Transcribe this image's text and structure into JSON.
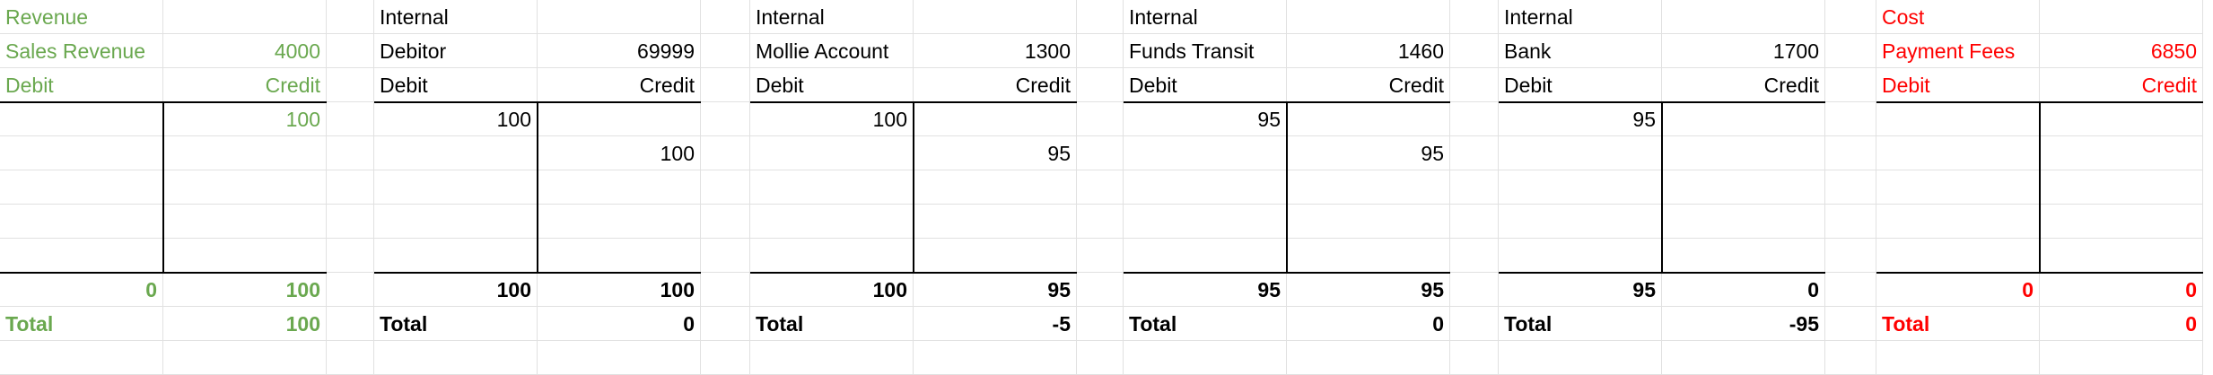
{
  "accounts": [
    {
      "key": "revenue",
      "category": "Revenue",
      "name": "Sales Revenue",
      "number": "4000",
      "debit_label": "Debit",
      "credit_label": "Credit",
      "entries": [
        {
          "debit": "",
          "credit": "100"
        },
        {
          "debit": "",
          "credit": ""
        },
        {
          "debit": "",
          "credit": ""
        },
        {
          "debit": "",
          "credit": ""
        },
        {
          "debit": "",
          "credit": ""
        }
      ],
      "debit_total": "0",
      "credit_total": "100",
      "total_label": "Total",
      "total": "100",
      "color": "#6aa84f"
    },
    {
      "key": "debitor",
      "category": "Internal",
      "name": "Debitor",
      "number": "69999",
      "debit_label": "Debit",
      "credit_label": "Credit",
      "entries": [
        {
          "debit": "100",
          "credit": ""
        },
        {
          "debit": "",
          "credit": "100"
        },
        {
          "debit": "",
          "credit": ""
        },
        {
          "debit": "",
          "credit": ""
        },
        {
          "debit": "",
          "credit": ""
        }
      ],
      "debit_total": "100",
      "credit_total": "100",
      "total_label": "Total",
      "total": "0",
      "color": "#000000"
    },
    {
      "key": "mollie",
      "category": "Internal",
      "name": "Mollie Account",
      "number": "1300",
      "debit_label": "Debit",
      "credit_label": "Credit",
      "entries": [
        {
          "debit": "100",
          "credit": ""
        },
        {
          "debit": "",
          "credit": "95"
        },
        {
          "debit": "",
          "credit": ""
        },
        {
          "debit": "",
          "credit": ""
        },
        {
          "debit": "",
          "credit": ""
        }
      ],
      "debit_total": "100",
      "credit_total": "95",
      "total_label": "Total",
      "total": "-5",
      "color": "#000000"
    },
    {
      "key": "transit",
      "category": "Internal",
      "name": "Funds Transit",
      "number": "1460",
      "debit_label": "Debit",
      "credit_label": "Credit",
      "entries": [
        {
          "debit": "95",
          "credit": ""
        },
        {
          "debit": "",
          "credit": "95"
        },
        {
          "debit": "",
          "credit": ""
        },
        {
          "debit": "",
          "credit": ""
        },
        {
          "debit": "",
          "credit": ""
        }
      ],
      "debit_total": "95",
      "credit_total": "95",
      "total_label": "Total",
      "total": "0",
      "color": "#000000"
    },
    {
      "key": "bank",
      "category": "Internal",
      "name": "Bank",
      "number": "1700",
      "debit_label": "Debit",
      "credit_label": "Credit",
      "entries": [
        {
          "debit": "95",
          "credit": ""
        },
        {
          "debit": "",
          "credit": ""
        },
        {
          "debit": "",
          "credit": ""
        },
        {
          "debit": "",
          "credit": ""
        },
        {
          "debit": "",
          "credit": ""
        }
      ],
      "debit_total": "95",
      "credit_total": "0",
      "total_label": "Total",
      "total": "-95",
      "color": "#000000"
    },
    {
      "key": "fees",
      "category": "Cost",
      "name": "Payment Fees",
      "number": "6850",
      "debit_label": "Debit",
      "credit_label": "Credit",
      "entries": [
        {
          "debit": "",
          "credit": ""
        },
        {
          "debit": "",
          "credit": ""
        },
        {
          "debit": "",
          "credit": ""
        },
        {
          "debit": "",
          "credit": ""
        },
        {
          "debit": "",
          "credit": ""
        }
      ],
      "debit_total": "0",
      "credit_total": "0",
      "total_label": "Total",
      "total": "0",
      "color": "#ff0000"
    }
  ]
}
